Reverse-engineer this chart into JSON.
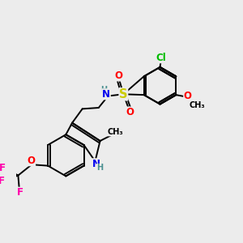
{
  "background_color": "#ececec",
  "atom_colors": {
    "C": "#000000",
    "H": "#4a9090",
    "N": "#0000ee",
    "O": "#ff0000",
    "S": "#cccc00",
    "F": "#ff00aa",
    "Cl": "#00bb00"
  },
  "bond_color": "#000000",
  "bond_width": 1.4,
  "font_size": 8.5
}
